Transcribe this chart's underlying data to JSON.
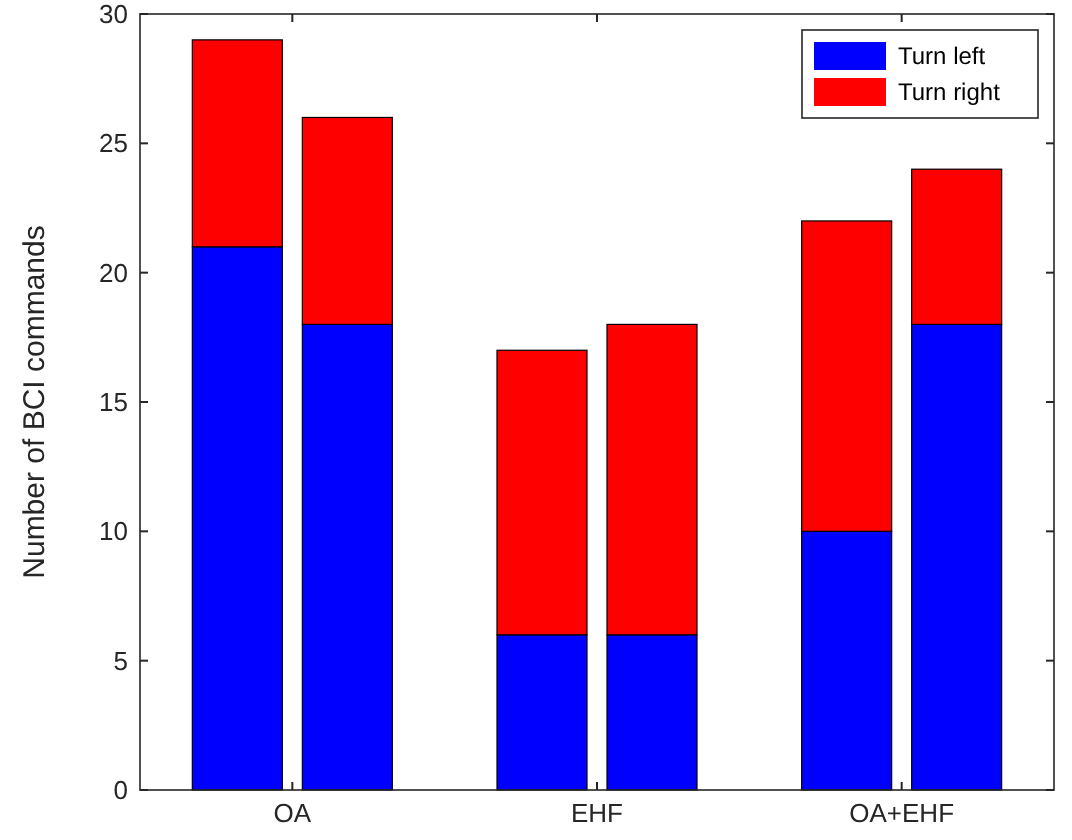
{
  "chart_data": {
    "type": "bar",
    "stacked": true,
    "ylabel": "Number of BCI commands",
    "categories": [
      null,
      null,
      null,
      null,
      null,
      null
    ],
    "annotations": [
      "OA",
      "EHF",
      "OA+EHF"
    ],
    "series": [
      {
        "name": "Turn left",
        "color": "#0000ff",
        "values": [
          21,
          18,
          6,
          6,
          10,
          18
        ]
      },
      {
        "name": "Turn right",
        "color": "#ff0000",
        "values": [
          8,
          8,
          11,
          12,
          12,
          6
        ]
      }
    ],
    "ylim": [
      0,
      30
    ],
    "yticks": [
      0,
      5,
      10,
      15,
      20,
      25,
      30
    ],
    "legend": "top right",
    "grid": false
  }
}
